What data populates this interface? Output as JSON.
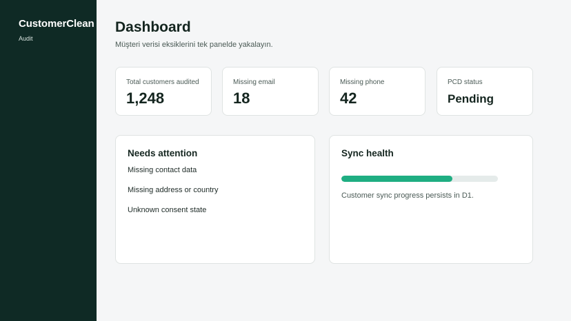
{
  "sidebar": {
    "brand": "CustomerClean",
    "subtitle": "Audit"
  },
  "header": {
    "title": "Dashboard",
    "subtitle": "Müşteri verisi eksiklerini tek panelde yakalayın."
  },
  "stats": [
    {
      "label": "Total customers audited",
      "value": "1,248"
    },
    {
      "label": "Missing email",
      "value": "18"
    },
    {
      "label": "Missing phone",
      "value": "42"
    },
    {
      "label": "PCD status",
      "value": "Pending"
    }
  ],
  "attention": {
    "title": "Needs attention",
    "items": [
      "Missing contact data",
      "Missing address or country",
      "Unknown consent state"
    ]
  },
  "sync": {
    "title": "Sync health",
    "progress_percent": 71,
    "text": "Customer sync progress persists in D1."
  },
  "colors": {
    "sidebar_bg": "#0f2a25",
    "accent": "#1fae82",
    "page_bg": "#f5f6f7"
  }
}
